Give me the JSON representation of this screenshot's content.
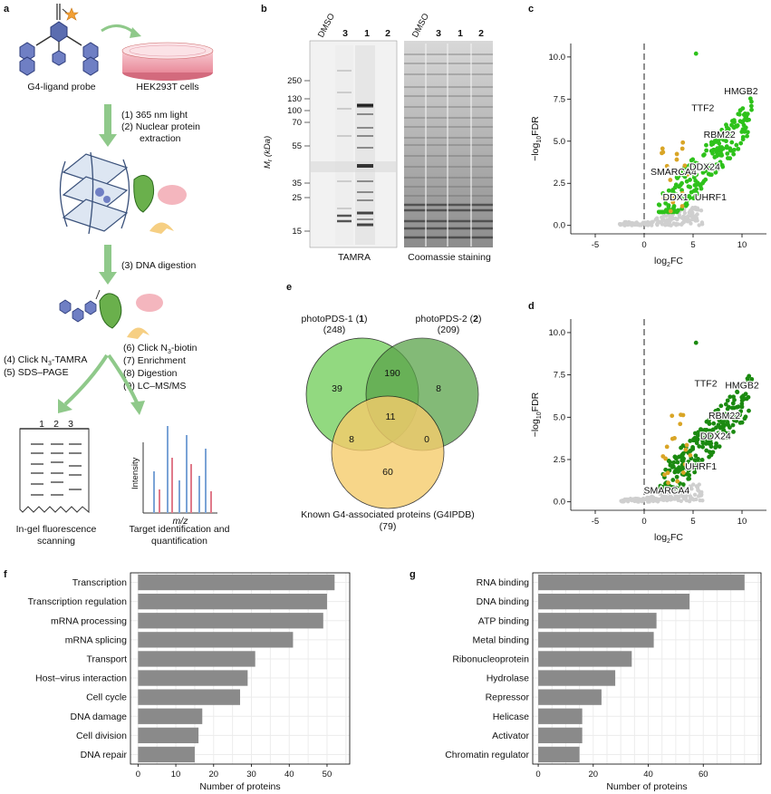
{
  "panels": {
    "a": {
      "label": "a",
      "probe_label": "G4-ligand probe",
      "cells_label": "HEK293T cells",
      "step1_2": [
        "(1) 365 nm light",
        "(2) Nuclear protein",
        "extraction"
      ],
      "step3": "(3) DNA digestion",
      "left_steps": [
        "(4) Click N3-TAMRA",
        "(5) SDS–PAGE"
      ],
      "right_steps": [
        "(6) Click N3-biotin",
        "(7) Enrichment",
        "(8) Digestion",
        "(9) LC–MS/MS"
      ],
      "gel_lanes": [
        "1",
        "2",
        "3"
      ],
      "ms_xlabel": "m/z",
      "ms_ylabel": "Intensity",
      "left_caption": [
        "In-gel fluorescence",
        "scanning"
      ],
      "right_caption": [
        "Target identification and",
        "quantification"
      ]
    },
    "b": {
      "label": "b",
      "left_lanes": [
        "DMSO",
        "3",
        "1",
        "2"
      ],
      "right_lanes": [
        "DMSO",
        "3",
        "1",
        "2"
      ],
      "yaxis_label": "Mr (kDa)",
      "markers": [
        "250",
        "130",
        "100",
        "70",
        "55",
        "35",
        "25",
        "15"
      ],
      "left_title": "TAMRA",
      "right_title": "Coomassie staining"
    },
    "c": {
      "label": "c"
    },
    "d": {
      "label": "d"
    },
    "e": {
      "label": "e",
      "set1": "photoPDS-1 (1)",
      "set1_n": "(248)",
      "set2": "photoPDS-2 (2)",
      "set2_n": "(209)",
      "set3": "Known G4-associated proteins (G4IPDB)",
      "set3_n": "(79)",
      "counts": {
        "only1": "39",
        "one_two": "190",
        "only2": "8",
        "all": "11",
        "one_three": "8",
        "two_three": "0",
        "only3": "60"
      }
    },
    "f": {
      "label": "f"
    },
    "g": {
      "label": "g"
    }
  },
  "chart_data": [
    {
      "id": "c",
      "type": "scatter",
      "xlabel": "log2FC",
      "ylabel": "−log10FDR",
      "xlim": [
        -7.5,
        12.5
      ],
      "ylim": [
        -0.5,
        10.8
      ],
      "xticks": [
        -5,
        0,
        5,
        10
      ],
      "yticks": [
        0.0,
        2.5,
        5.0,
        7.5,
        10.0
      ],
      "annotations": [
        {
          "text": "HMGB2",
          "x": 9.9,
          "y": 7.8
        },
        {
          "text": "TTF2",
          "x": 6.0,
          "y": 6.8
        },
        {
          "text": "RBM22",
          "x": 7.7,
          "y": 5.2
        },
        {
          "text": "SMARCA4",
          "x": 3.0,
          "y": 3.0
        },
        {
          "text": "DDX24",
          "x": 6.2,
          "y": 3.3
        },
        {
          "text": "DDX1",
          "x": 3.2,
          "y": 1.5
        },
        {
          "text": "UHRF1",
          "x": 6.8,
          "y": 1.5
        }
      ]
    },
    {
      "id": "d",
      "type": "scatter",
      "xlabel": "log2FC",
      "ylabel": "−log10FDR",
      "xlim": [
        -7.5,
        12.5
      ],
      "ylim": [
        -0.5,
        10.8
      ],
      "xticks": [
        -5,
        0,
        5,
        10
      ],
      "yticks": [
        0.0,
        2.5,
        5.0,
        7.5,
        10.0
      ],
      "annotations": [
        {
          "text": "HMGB2",
          "x": 10.0,
          "y": 6.7
        },
        {
          "text": "TTF2",
          "x": 6.3,
          "y": 6.8
        },
        {
          "text": "RBM22",
          "x": 8.2,
          "y": 4.9
        },
        {
          "text": "DDX24",
          "x": 7.3,
          "y": 3.7
        },
        {
          "text": "UHRF1",
          "x": 5.8,
          "y": 1.9
        },
        {
          "text": "SMARCA4",
          "x": 2.3,
          "y": 0.5
        }
      ]
    },
    {
      "id": "f",
      "type": "bar",
      "orientation": "horizontal",
      "categories": [
        "Transcription",
        "Transcription regulation",
        "mRNA processing",
        "mRNA splicing",
        "Transport",
        "Host–virus interaction",
        "Cell cycle",
        "DNA damage",
        "Cell division",
        "DNA repair"
      ],
      "values": [
        52,
        50,
        49,
        41,
        31,
        29,
        27,
        17,
        16,
        15
      ],
      "xlabel": "Number of proteins",
      "xlim": [
        -2,
        56
      ],
      "xticks": [
        0,
        10,
        20,
        30,
        40,
        50
      ],
      "grid": true
    },
    {
      "id": "g",
      "type": "bar",
      "orientation": "horizontal",
      "categories": [
        "RNA binding",
        "DNA binding",
        "ATP binding",
        "Metal binding",
        "Ribonucleoprotein",
        "Hydrolase",
        "Repressor",
        "Helicase",
        "Activator",
        "Chromatin regulator"
      ],
      "values": [
        75,
        55,
        43,
        42,
        34,
        28,
        23,
        16,
        16,
        15
      ],
      "xlabel": "Number of proteins",
      "xlim": [
        -2,
        81
      ],
      "xticks": [
        0,
        20,
        40,
        60
      ],
      "grid": true
    }
  ]
}
